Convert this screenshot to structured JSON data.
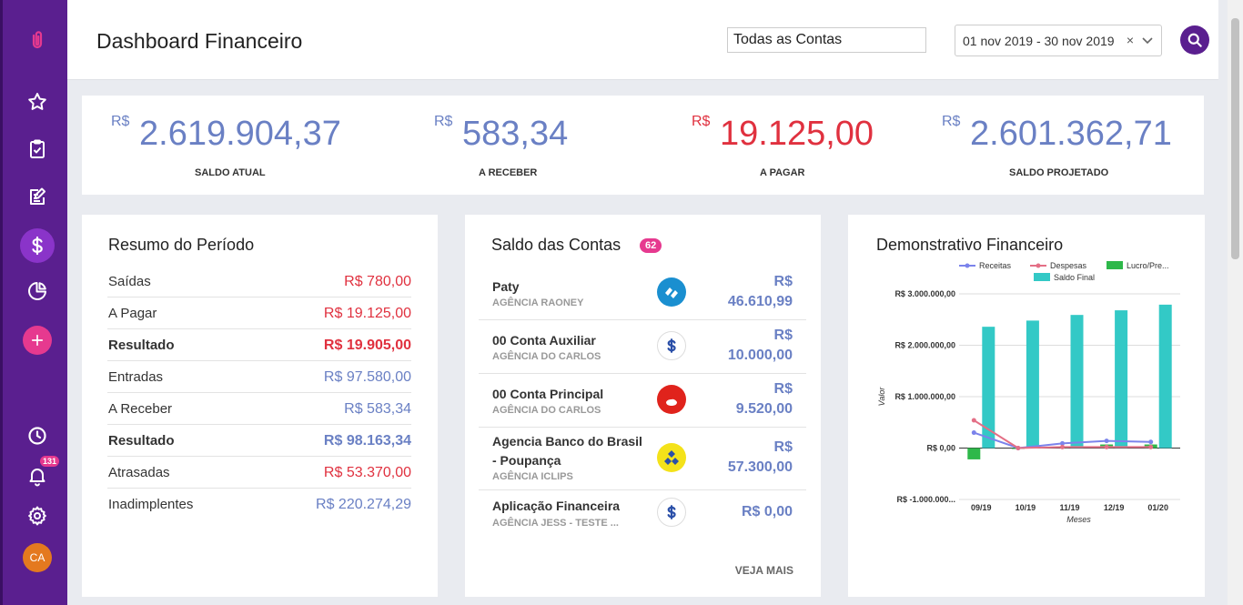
{
  "header": {
    "title": "Dashboard Financeiro",
    "account_filter": "Todas as Contas",
    "date_range": "01 nov 2019 - 30 nov 2019",
    "clear": "×"
  },
  "sidebar": {
    "notification_count": "131",
    "avatar": "CA",
    "icons": [
      "paperclip-logo-icon",
      "star-icon",
      "clipboard-icon",
      "edit-icon",
      "dollar-icon",
      "pie-chart-icon",
      "plus-icon",
      "clock-icon",
      "bell-icon",
      "gear-icon"
    ]
  },
  "summary": [
    {
      "currency": "R$",
      "value": "2.619.904,37",
      "label": "SALDO ATUAL",
      "color": "#6a80c4"
    },
    {
      "currency": "R$",
      "value": "583,34",
      "label": "A RECEBER",
      "color": "#6a80c4"
    },
    {
      "currency": "R$",
      "value": "19.125,00",
      "label": "A PAGAR",
      "color": "#e0313f"
    },
    {
      "currency": "R$",
      "value": "2.601.362,71",
      "label": "SALDO PROJETADO",
      "color": "#6a80c4"
    }
  ],
  "period": {
    "title": "Resumo do Período",
    "rows": [
      {
        "label": "Saídas",
        "value": "R$ 780,00"
      },
      {
        "label": "A Pagar",
        "value": "R$ 19.125,00"
      },
      {
        "label": "Resultado",
        "value": "R$ 19.905,00"
      },
      {
        "label": "Entradas",
        "value": "R$ 97.580,00"
      },
      {
        "label": "A Receber",
        "value": "R$ 583,34"
      },
      {
        "label": "Resultado",
        "value": "R$ 98.163,34"
      },
      {
        "label": "Atrasadas",
        "value": "R$ 53.370,00"
      },
      {
        "label": "Inadimplentes",
        "value": "R$ 220.274,29"
      }
    ]
  },
  "accounts": {
    "title": "Saldo das Contas",
    "count": "62",
    "more": "VEJA MAIS",
    "rows": [
      {
        "name": "Paty",
        "agency": "AGÊNCIA RAONEY",
        "amount_prefix": "R$",
        "amount": "46.610,99"
      },
      {
        "name": "00 Conta Auxiliar",
        "agency": "AGÊNCIA DO CARLOS",
        "amount_prefix": "R$",
        "amount": "10.000,00"
      },
      {
        "name": "00 Conta Principal",
        "agency": "AGÊNCIA DO CARLOS",
        "amount_prefix": "R$",
        "amount": "9.520,00"
      },
      {
        "name": "Agencia Banco do Brasil - Poupança",
        "agency": "AGÊNCIA ICLIPS",
        "amount_prefix": "R$",
        "amount": "57.300,00"
      },
      {
        "name": "Aplicação Financeira",
        "agency": "AGÊNCIA JESS - TESTE ...",
        "amount_prefix": "",
        "amount": "R$ 0,00"
      }
    ]
  },
  "chart_title": "Demonstrativo Financeiro",
  "chart_data": {
    "type": "bar",
    "categories": [
      "09/19",
      "10/19",
      "11/19",
      "12/19",
      "01/20"
    ],
    "series": [
      {
        "name": "Receitas",
        "kind": "line",
        "color": "#7b83eb",
        "values": [
          300000,
          0,
          90000,
          140000,
          120000
        ]
      },
      {
        "name": "Despesas",
        "kind": "line",
        "color": "#e46f86",
        "values": [
          540000,
          0,
          20000,
          20000,
          20000
        ]
      },
      {
        "name": "Lucro/Pre...",
        "kind": "bar",
        "color": "#2eb84a",
        "values": [
          -220000,
          0,
          30000,
          70000,
          70000
        ]
      },
      {
        "name": "Saldo Final",
        "kind": "bar",
        "color": "#33c9c6",
        "values": [
          2360000,
          2480000,
          2590000,
          2680000,
          2790000
        ]
      }
    ],
    "yticks": [
      "R$ 3.000.000,00",
      "R$ 2.000.000,00",
      "R$ 1.000.000,00",
      "R$ 0,00",
      "R$ -1.000.000..."
    ],
    "ylim": [
      -1000000,
      3000000
    ],
    "xlabel": "Meses",
    "ylabel": "Valor",
    "grid": true,
    "legend": "top"
  }
}
